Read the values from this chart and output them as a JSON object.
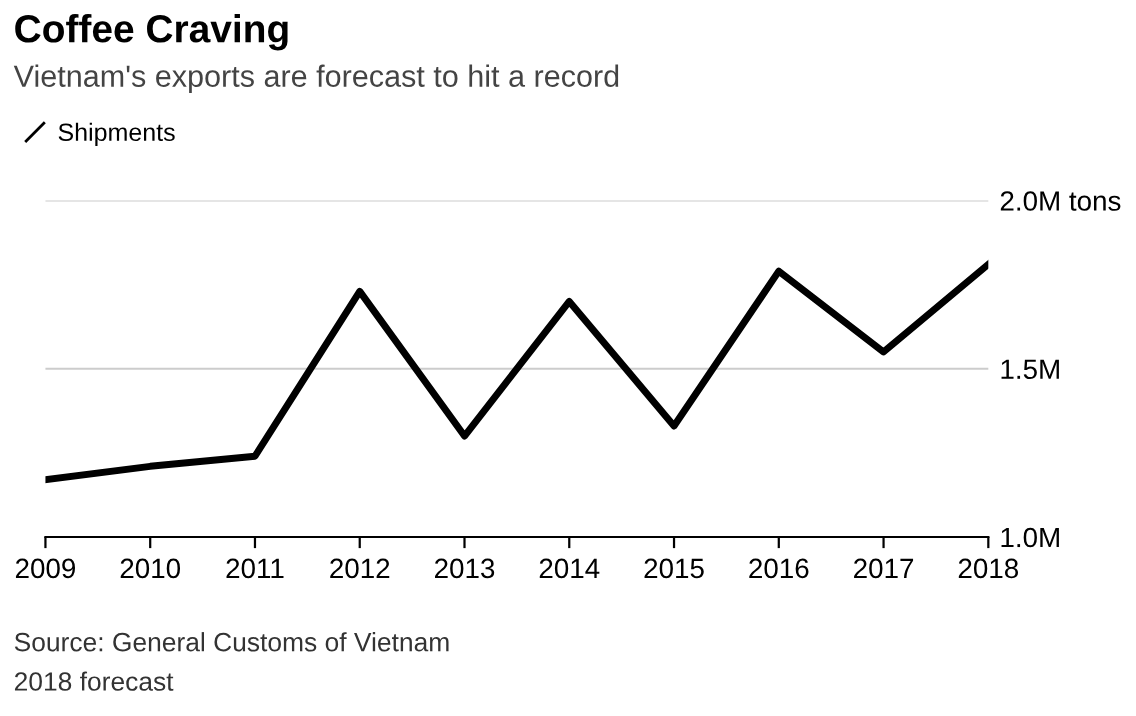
{
  "chart_data": {
    "type": "line",
    "title": "Coffee Craving",
    "subtitle": "Vietnam's exports are forecast to hit a record",
    "x": [
      2009,
      2010,
      2011,
      2012,
      2013,
      2014,
      2015,
      2016,
      2017,
      2018
    ],
    "series": [
      {
        "name": "Shipments",
        "color": "#000000",
        "values": [
          1.17,
          1.21,
          1.24,
          1.73,
          1.3,
          1.7,
          1.33,
          1.79,
          1.55,
          1.81
        ]
      }
    ],
    "xlim": [
      2009,
      2018
    ],
    "xticks": [
      2009,
      2010,
      2011,
      2012,
      2013,
      2014,
      2015,
      2016,
      2017,
      2018
    ],
    "ylim": [
      1.0,
      2.0
    ],
    "yticks": [
      {
        "value": 1.0,
        "label": "1.0M"
      },
      {
        "value": 1.5,
        "label": "1.5M"
      },
      {
        "value": 2.0,
        "label": "2.0M tons"
      }
    ],
    "grid": "y",
    "legend": "top left",
    "marker": "none",
    "line_style": "solid",
    "annotations": [
      "Source: General Customs of Vietnam",
      "2018 forecast"
    ]
  }
}
